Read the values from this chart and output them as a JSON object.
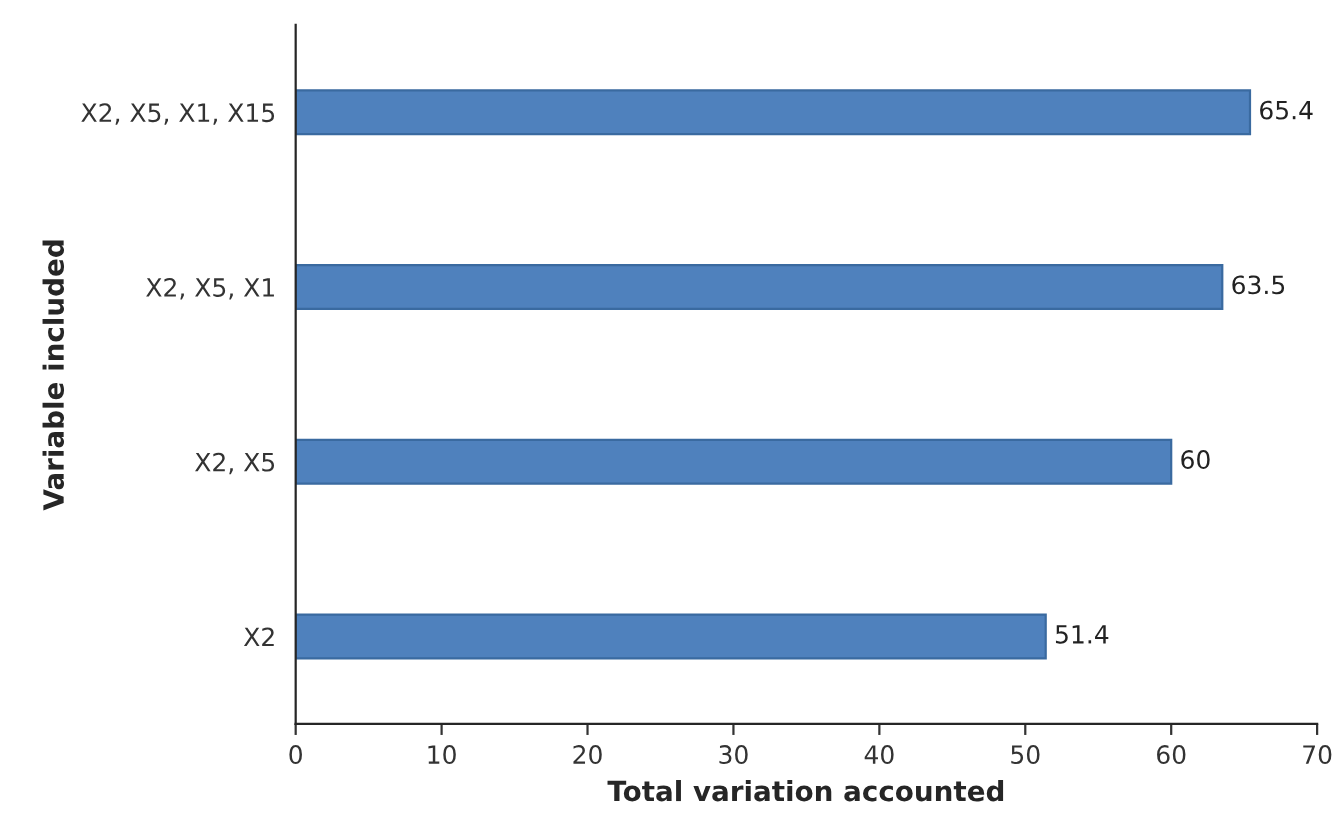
{
  "chart_data": {
    "type": "bar",
    "orientation": "horizontal",
    "xlabel": "Total variation accounted",
    "ylabel": "Variable included",
    "categories": [
      "X2, X5, X1, X15",
      "X2, X5, X1",
      "X2, X5",
      "X2"
    ],
    "values": [
      65.4,
      63.5,
      60,
      51.4
    ],
    "color": "#4f81bd",
    "xlim": [
      0,
      70
    ],
    "xticks": [
      0,
      10,
      20,
      30,
      40,
      50,
      60,
      70
    ],
    "data_labels": true,
    "grid": false,
    "legend": false
  }
}
